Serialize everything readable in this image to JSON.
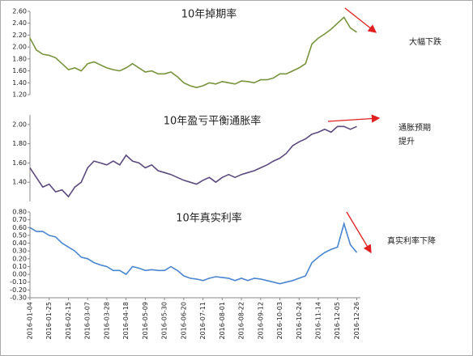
{
  "chart_data": [
    {
      "type": "line",
      "title": "10年掉期率",
      "annotations": [
        "大幅下跌"
      ],
      "color": "#77933c",
      "x": [
        "2016-01-04",
        "2016-01-11",
        "2016-01-18",
        "2016-01-25",
        "2016-02-01",
        "2016-02-08",
        "2016-02-15",
        "2016-02-22",
        "2016-02-29",
        "2016-03-07",
        "2016-03-14",
        "2016-03-21",
        "2016-03-28",
        "2016-04-04",
        "2016-04-11",
        "2016-04-18",
        "2016-04-25",
        "2016-05-02",
        "2016-05-09",
        "2016-05-16",
        "2016-05-23",
        "2016-05-30",
        "2016-06-06",
        "2016-06-13",
        "2016-06-20",
        "2016-06-27",
        "2016-07-04",
        "2016-07-11",
        "2016-07-18",
        "2016-07-25",
        "2016-08-01",
        "2016-08-08",
        "2016-08-15",
        "2016-08-22",
        "2016-08-29",
        "2016-09-05",
        "2016-09-12",
        "2016-09-19",
        "2016-09-26",
        "2016-10-03",
        "2016-10-10",
        "2016-10-17",
        "2016-10-24",
        "2016-10-31",
        "2016-11-07",
        "2016-11-14",
        "2016-11-21",
        "2016-11-28",
        "2016-12-05",
        "2016-12-12",
        "2016-12-19",
        "2016-12-26"
      ],
      "values": [
        2.15,
        1.95,
        1.88,
        1.86,
        1.82,
        1.72,
        1.62,
        1.65,
        1.6,
        1.72,
        1.75,
        1.7,
        1.65,
        1.62,
        1.6,
        1.65,
        1.72,
        1.65,
        1.58,
        1.6,
        1.55,
        1.55,
        1.58,
        1.5,
        1.4,
        1.35,
        1.32,
        1.35,
        1.4,
        1.38,
        1.42,
        1.4,
        1.38,
        1.43,
        1.42,
        1.4,
        1.45,
        1.45,
        1.48,
        1.55,
        1.55,
        1.6,
        1.65,
        1.72,
        2.05,
        2.15,
        2.22,
        2.3,
        2.4,
        2.5,
        2.32,
        2.25
      ],
      "xlim": [
        "2016-01-04",
        "2016-12-30"
      ],
      "ylim": [
        1.2,
        2.6
      ],
      "yticks": [
        {
          "value": 1.2,
          "label": "1.20"
        },
        {
          "value": 1.4,
          "label": "1.40"
        },
        {
          "value": 1.6,
          "label": "1.60"
        },
        {
          "value": 1.8,
          "label": "1.80"
        },
        {
          "value": 2.0,
          "label": "2.00"
        },
        {
          "value": 2.2,
          "label": "2.20"
        },
        {
          "value": 2.4,
          "label": "2.40"
        },
        {
          "value": 2.6,
          "label": "2.60"
        }
      ]
    },
    {
      "type": "line",
      "title": "10年盈亏平衡通胀率",
      "annotations": [
        "通胀预期",
        "提升"
      ],
      "color": "#5b4a7e",
      "x": [
        "2016-01-04",
        "2016-01-11",
        "2016-01-18",
        "2016-01-25",
        "2016-02-01",
        "2016-02-08",
        "2016-02-15",
        "2016-02-22",
        "2016-02-29",
        "2016-03-07",
        "2016-03-14",
        "2016-03-21",
        "2016-03-28",
        "2016-04-04",
        "2016-04-11",
        "2016-04-18",
        "2016-04-25",
        "2016-05-02",
        "2016-05-09",
        "2016-05-16",
        "2016-05-23",
        "2016-05-30",
        "2016-06-06",
        "2016-06-13",
        "2016-06-20",
        "2016-06-27",
        "2016-07-04",
        "2016-07-11",
        "2016-07-18",
        "2016-07-25",
        "2016-08-01",
        "2016-08-08",
        "2016-08-15",
        "2016-08-22",
        "2016-08-29",
        "2016-09-05",
        "2016-09-12",
        "2016-09-19",
        "2016-09-26",
        "2016-10-03",
        "2016-10-10",
        "2016-10-17",
        "2016-10-24",
        "2016-10-31",
        "2016-11-07",
        "2016-11-14",
        "2016-11-21",
        "2016-11-28",
        "2016-12-05",
        "2016-12-12",
        "2016-12-19",
        "2016-12-26"
      ],
      "values": [
        1.55,
        1.45,
        1.35,
        1.38,
        1.3,
        1.32,
        1.25,
        1.35,
        1.4,
        1.55,
        1.62,
        1.6,
        1.58,
        1.62,
        1.58,
        1.68,
        1.62,
        1.6,
        1.55,
        1.58,
        1.52,
        1.5,
        1.48,
        1.45,
        1.42,
        1.4,
        1.38,
        1.42,
        1.45,
        1.4,
        1.45,
        1.48,
        1.45,
        1.48,
        1.5,
        1.52,
        1.55,
        1.58,
        1.62,
        1.65,
        1.7,
        1.78,
        1.82,
        1.85,
        1.9,
        1.92,
        1.95,
        1.92,
        1.98,
        1.98,
        1.95,
        1.98
      ],
      "xlim": [
        "2016-01-04",
        "2016-12-30"
      ],
      "ylim": [
        1.2,
        2.1
      ],
      "yticks": [
        {
          "value": 1.4,
          "label": "1.40"
        },
        {
          "value": 1.6,
          "label": "1.60"
        },
        {
          "value": 1.8,
          "label": "1.80"
        },
        {
          "value": 2.0,
          "label": "2.00"
        }
      ]
    },
    {
      "type": "line",
      "title": "10年真实利率",
      "annotations": [
        "真实利率下降"
      ],
      "color": "#4a86d0",
      "x": [
        "2016-01-04",
        "2016-01-11",
        "2016-01-18",
        "2016-01-25",
        "2016-02-01",
        "2016-02-08",
        "2016-02-15",
        "2016-02-22",
        "2016-02-29",
        "2016-03-07",
        "2016-03-14",
        "2016-03-21",
        "2016-03-28",
        "2016-04-04",
        "2016-04-11",
        "2016-04-18",
        "2016-04-25",
        "2016-05-02",
        "2016-05-09",
        "2016-05-16",
        "2016-05-23",
        "2016-05-30",
        "2016-06-06",
        "2016-06-13",
        "2016-06-20",
        "2016-06-27",
        "2016-07-04",
        "2016-07-11",
        "2016-07-18",
        "2016-07-25",
        "2016-08-01",
        "2016-08-08",
        "2016-08-15",
        "2016-08-22",
        "2016-08-29",
        "2016-09-05",
        "2016-09-12",
        "2016-09-19",
        "2016-09-26",
        "2016-10-03",
        "2016-10-10",
        "2016-10-17",
        "2016-10-24",
        "2016-10-31",
        "2016-11-07",
        "2016-11-14",
        "2016-11-21",
        "2016-11-28",
        "2016-12-05",
        "2016-12-12",
        "2016-12-19",
        "2016-12-26"
      ],
      "values": [
        0.6,
        0.55,
        0.55,
        0.5,
        0.48,
        0.4,
        0.35,
        0.3,
        0.22,
        0.2,
        0.15,
        0.12,
        0.1,
        0.05,
        0.05,
        0.0,
        0.1,
        0.08,
        0.05,
        0.06,
        0.05,
        0.05,
        0.1,
        0.05,
        -0.02,
        -0.05,
        -0.06,
        -0.08,
        -0.05,
        -0.03,
        -0.04,
        -0.05,
        -0.08,
        -0.05,
        -0.08,
        -0.05,
        -0.06,
        -0.08,
        -0.1,
        -0.12,
        -0.1,
        -0.08,
        -0.05,
        -0.02,
        0.15,
        0.22,
        0.28,
        0.32,
        0.35,
        0.65,
        0.38,
        0.28
      ],
      "xlim": [
        "2016-01-04",
        "2016-12-30"
      ],
      "ylim": [
        -0.3,
        0.8
      ],
      "yticks": [
        {
          "value": -0.3,
          "label": "-0.30"
        },
        {
          "value": -0.2,
          "label": "-0.20"
        },
        {
          "value": -0.1,
          "label": "-0.10"
        },
        {
          "value": 0,
          "label": "0.00"
        },
        {
          "value": 0.1,
          "label": "0.10"
        },
        {
          "value": 0.2,
          "label": "0.20"
        },
        {
          "value": 0.3,
          "label": "0.30"
        },
        {
          "value": 0.4,
          "label": "0.40"
        },
        {
          "value": 0.5,
          "label": "0.50"
        },
        {
          "value": 0.6,
          "label": "0.60"
        },
        {
          "value": 0.7,
          "label": "0.70"
        },
        {
          "value": 0.8,
          "label": "0.80"
        }
      ],
      "xticks": [
        "2016-01-04",
        "2016-01-25",
        "2016-02-15",
        "2016-03-07",
        "2016-03-28",
        "2016-04-18",
        "2016-05-09",
        "2016-05-30",
        "2016-06-20",
        "2016-07-11",
        "2016-08-01",
        "2016-08-22",
        "2016-09-12",
        "2016-10-03",
        "2016-10-24",
        "2016-11-14",
        "2016-12-05",
        "2016-12-26"
      ]
    }
  ]
}
